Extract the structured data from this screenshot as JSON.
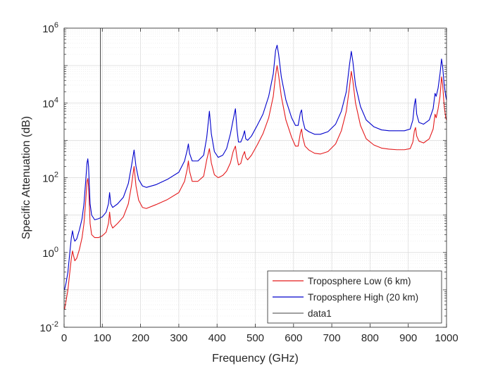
{
  "chart_data": {
    "type": "line",
    "title": "",
    "xlabel": "Frequency (GHz)",
    "ylabel": "Specific Attenuation (dB)",
    "xlim": [
      0,
      1000
    ],
    "ylim": [
      0.01,
      1000000
    ],
    "yscale": "log",
    "grid": "on (major and minor)",
    "legend_location": "bottom-right",
    "x_ticks": [
      0,
      100,
      200,
      300,
      400,
      500,
      600,
      700,
      800,
      900,
      1000
    ],
    "x_tick_labels": [
      "0",
      "100",
      "200",
      "300",
      "400",
      "500",
      "600",
      "700",
      "800",
      "900",
      "1000"
    ],
    "y_ticks": [
      0.01,
      1,
      100,
      10000,
      1000000
    ],
    "y_tick_labels": [
      {
        "base": "10",
        "exp": "-2"
      },
      {
        "base": "10",
        "exp": "0"
      },
      {
        "base": "10",
        "exp": "2"
      },
      {
        "base": "10",
        "exp": "4"
      },
      {
        "base": "10",
        "exp": "6"
      }
    ],
    "series": [
      {
        "name": "Troposphere Low (6 km)",
        "color": "#e41a1c",
        "points": [
          [
            1,
            0.03
          ],
          [
            5,
            0.05
          ],
          [
            10,
            0.1
          ],
          [
            15,
            0.3
          ],
          [
            19,
            0.7
          ],
          [
            22,
            1.1
          ],
          [
            25,
            0.8
          ],
          [
            28,
            0.6
          ],
          [
            33,
            0.7
          ],
          [
            40,
            1.2
          ],
          [
            47,
            2.5
          ],
          [
            52,
            6
          ],
          [
            56,
            20
          ],
          [
            60,
            80
          ],
          [
            62,
            95
          ],
          [
            64,
            60
          ],
          [
            66,
            20
          ],
          [
            68,
            6
          ],
          [
            72,
            3
          ],
          [
            80,
            2.5
          ],
          [
            90,
            2.5
          ],
          [
            100,
            2.8
          ],
          [
            110,
            3.5
          ],
          [
            116,
            6
          ],
          [
            119,
            12
          ],
          [
            122,
            6
          ],
          [
            127,
            4.5
          ],
          [
            140,
            6
          ],
          [
            155,
            9
          ],
          [
            168,
            20
          ],
          [
            176,
            60
          ],
          [
            183,
            200
          ],
          [
            188,
            60
          ],
          [
            195,
            25
          ],
          [
            205,
            16
          ],
          [
            215,
            15
          ],
          [
            240,
            19
          ],
          [
            270,
            26
          ],
          [
            300,
            40
          ],
          [
            315,
            80
          ],
          [
            322,
            170
          ],
          [
            325,
            280
          ],
          [
            328,
            150
          ],
          [
            335,
            80
          ],
          [
            350,
            80
          ],
          [
            365,
            110
          ],
          [
            373,
            300
          ],
          [
            380,
            600
          ],
          [
            385,
            250
          ],
          [
            393,
            120
          ],
          [
            403,
            100
          ],
          [
            415,
            115
          ],
          [
            425,
            150
          ],
          [
            435,
            250
          ],
          [
            442,
            500
          ],
          [
            448,
            700
          ],
          [
            452,
            350
          ],
          [
            456,
            220
          ],
          [
            462,
            240
          ],
          [
            467,
            380
          ],
          [
            472,
            500
          ],
          [
            475,
            350
          ],
          [
            480,
            300
          ],
          [
            490,
            400
          ],
          [
            505,
            750
          ],
          [
            520,
            1500
          ],
          [
            535,
            4000
          ],
          [
            547,
            15000
          ],
          [
            553,
            55000
          ],
          [
            557,
            100000
          ],
          [
            561,
            55000
          ],
          [
            568,
            15000
          ],
          [
            580,
            3500
          ],
          [
            595,
            1200
          ],
          [
            605,
            700
          ],
          [
            612,
            700
          ],
          [
            618,
            1600
          ],
          [
            621,
            2000
          ],
          [
            624,
            1200
          ],
          [
            630,
            700
          ],
          [
            640,
            550
          ],
          [
            655,
            450
          ],
          [
            670,
            430
          ],
          [
            690,
            500
          ],
          [
            710,
            800
          ],
          [
            725,
            1800
          ],
          [
            738,
            6000
          ],
          [
            746,
            25000
          ],
          [
            751,
            70000
          ],
          [
            755,
            40000
          ],
          [
            762,
            10000
          ],
          [
            775,
            2500
          ],
          [
            790,
            1100
          ],
          [
            810,
            750
          ],
          [
            830,
            620
          ],
          [
            850,
            580
          ],
          [
            870,
            560
          ],
          [
            890,
            560
          ],
          [
            905,
            600
          ],
          [
            912,
            900
          ],
          [
            916,
            1800
          ],
          [
            919,
            2200
          ],
          [
            922,
            1300
          ],
          [
            928,
            950
          ],
          [
            940,
            850
          ],
          [
            955,
            1100
          ],
          [
            965,
            2000
          ],
          [
            970,
            5000
          ],
          [
            973,
            4000
          ],
          [
            978,
            7000
          ],
          [
            983,
            15000
          ],
          [
            987,
            50000
          ],
          [
            990,
            30000
          ],
          [
            994,
            8000
          ],
          [
            998,
            4000
          ],
          [
            1000,
            3500
          ]
        ]
      },
      {
        "name": "Troposphere High (20 km)",
        "color": "#0000cc",
        "points": [
          [
            1,
            0.1
          ],
          [
            5,
            0.15
          ],
          [
            10,
            0.3
          ],
          [
            15,
            1
          ],
          [
            19,
            2.5
          ],
          [
            22,
            3.8
          ],
          [
            25,
            2.5
          ],
          [
            28,
            2
          ],
          [
            33,
            2.3
          ],
          [
            40,
            4
          ],
          [
            47,
            8
          ],
          [
            52,
            20
          ],
          [
            56,
            70
          ],
          [
            60,
            250
          ],
          [
            62,
            320
          ],
          [
            64,
            200
          ],
          [
            66,
            60
          ],
          [
            68,
            20
          ],
          [
            72,
            10
          ],
          [
            80,
            7.5
          ],
          [
            90,
            8
          ],
          [
            100,
            9
          ],
          [
            110,
            12
          ],
          [
            116,
            20
          ],
          [
            119,
            40
          ],
          [
            122,
            20
          ],
          [
            127,
            16
          ],
          [
            140,
            20
          ],
          [
            155,
            30
          ],
          [
            168,
            70
          ],
          [
            176,
            200
          ],
          [
            183,
            550
          ],
          [
            188,
            200
          ],
          [
            195,
            90
          ],
          [
            205,
            60
          ],
          [
            215,
            55
          ],
          [
            240,
            65
          ],
          [
            270,
            90
          ],
          [
            300,
            140
          ],
          [
            315,
            280
          ],
          [
            322,
            550
          ],
          [
            325,
            800
          ],
          [
            328,
            450
          ],
          [
            335,
            280
          ],
          [
            350,
            280
          ],
          [
            365,
            400
          ],
          [
            373,
            1200
          ],
          [
            380,
            6000
          ],
          [
            385,
            1500
          ],
          [
            393,
            500
          ],
          [
            403,
            350
          ],
          [
            415,
            400
          ],
          [
            425,
            600
          ],
          [
            435,
            1500
          ],
          [
            442,
            3500
          ],
          [
            448,
            7000
          ],
          [
            452,
            2000
          ],
          [
            456,
            900
          ],
          [
            462,
            900
          ],
          [
            467,
            1200
          ],
          [
            472,
            1800
          ],
          [
            475,
            1100
          ],
          [
            480,
            1000
          ],
          [
            490,
            1300
          ],
          [
            505,
            2500
          ],
          [
            520,
            5000
          ],
          [
            535,
            15000
          ],
          [
            547,
            60000
          ],
          [
            553,
            250000
          ],
          [
            557,
            350000
          ],
          [
            561,
            200000
          ],
          [
            568,
            50000
          ],
          [
            580,
            12000
          ],
          [
            595,
            4000
          ],
          [
            605,
            2500
          ],
          [
            612,
            2500
          ],
          [
            618,
            5500
          ],
          [
            621,
            6500
          ],
          [
            624,
            3500
          ],
          [
            630,
            2000
          ],
          [
            640,
            1700
          ],
          [
            655,
            1450
          ],
          [
            670,
            1450
          ],
          [
            690,
            1700
          ],
          [
            710,
            2700
          ],
          [
            725,
            6000
          ],
          [
            738,
            20000
          ],
          [
            746,
            100000
          ],
          [
            751,
            240000
          ],
          [
            755,
            130000
          ],
          [
            762,
            30000
          ],
          [
            775,
            8000
          ],
          [
            790,
            3500
          ],
          [
            810,
            2300
          ],
          [
            830,
            1900
          ],
          [
            850,
            1800
          ],
          [
            870,
            1800
          ],
          [
            890,
            1800
          ],
          [
            905,
            2000
          ],
          [
            912,
            3500
          ],
          [
            916,
            9000
          ],
          [
            919,
            13000
          ],
          [
            922,
            5000
          ],
          [
            928,
            3000
          ],
          [
            940,
            2700
          ],
          [
            955,
            3500
          ],
          [
            965,
            7000
          ],
          [
            970,
            18000
          ],
          [
            973,
            15000
          ],
          [
            978,
            25000
          ],
          [
            983,
            60000
          ],
          [
            987,
            150000
          ],
          [
            990,
            90000
          ],
          [
            994,
            30000
          ],
          [
            998,
            15000
          ],
          [
            1000,
            12000
          ]
        ]
      },
      {
        "name": "data1",
        "color": "#404040",
        "points": [
          [
            95,
            0.01
          ],
          [
            95,
            1000000
          ]
        ]
      }
    ]
  }
}
